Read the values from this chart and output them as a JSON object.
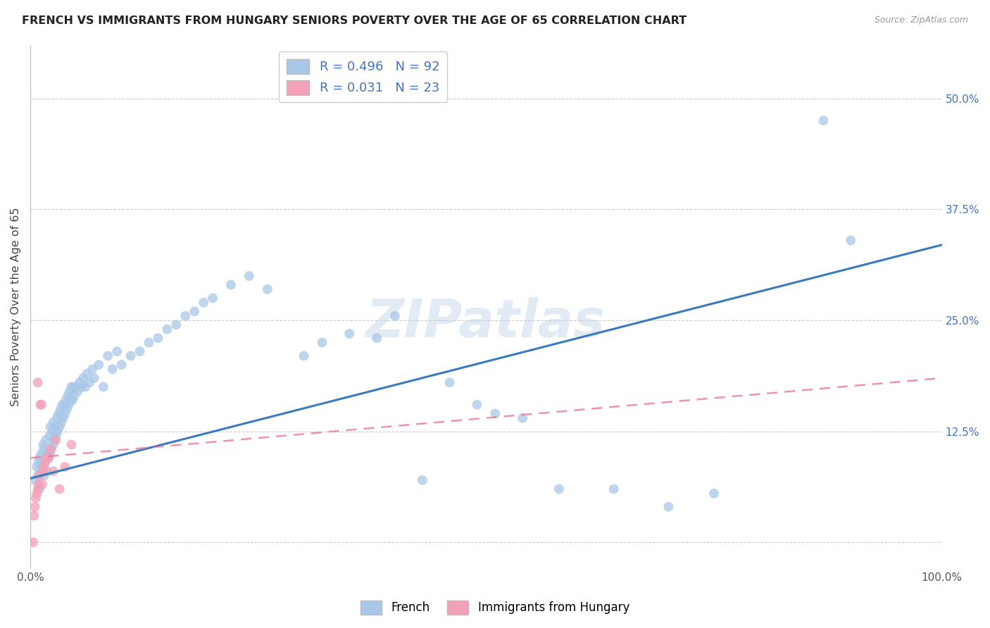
{
  "title": "FRENCH VS IMMIGRANTS FROM HUNGARY SENIORS POVERTY OVER THE AGE OF 65 CORRELATION CHART",
  "source": "Source: ZipAtlas.com",
  "ylabel": "Seniors Poverty Over the Age of 65",
  "xlim": [
    0.0,
    1.0
  ],
  "ylim": [
    -0.03,
    0.56
  ],
  "xticks": [
    0.0,
    0.1,
    0.2,
    0.3,
    0.4,
    0.5,
    0.6,
    0.7,
    0.8,
    0.9,
    1.0
  ],
  "xticklabels": [
    "0.0%",
    "",
    "",
    "",
    "",
    "",
    "",
    "",
    "",
    "",
    "100.0%"
  ],
  "ytick_positions": [
    0.0,
    0.125,
    0.25,
    0.375,
    0.5
  ],
  "ytick_labels": [
    "",
    "12.5%",
    "25.0%",
    "37.5%",
    "50.0%"
  ],
  "french_R": 0.496,
  "french_N": 92,
  "hungary_R": 0.031,
  "hungary_N": 23,
  "french_color": "#a8c8e8",
  "hungary_color": "#f4a0b8",
  "french_line_color": "#3a7abf",
  "hungary_line_color": "#e87090",
  "watermark": "ZIPatlas",
  "legend_label1": "French",
  "legend_label2": "Immigrants from Hungary",
  "french_x": [
    0.005,
    0.007,
    0.008,
    0.009,
    0.01,
    0.01,
    0.011,
    0.012,
    0.013,
    0.014,
    0.015,
    0.015,
    0.016,
    0.017,
    0.018,
    0.019,
    0.02,
    0.021,
    0.022,
    0.022,
    0.023,
    0.024,
    0.025,
    0.025,
    0.026,
    0.027,
    0.028,
    0.029,
    0.03,
    0.031,
    0.032,
    0.033,
    0.034,
    0.035,
    0.036,
    0.037,
    0.038,
    0.039,
    0.04,
    0.041,
    0.042,
    0.043,
    0.044,
    0.045,
    0.046,
    0.047,
    0.048,
    0.05,
    0.052,
    0.054,
    0.056,
    0.058,
    0.06,
    0.062,
    0.065,
    0.068,
    0.07,
    0.075,
    0.08,
    0.085,
    0.09,
    0.095,
    0.1,
    0.11,
    0.12,
    0.13,
    0.14,
    0.15,
    0.16,
    0.17,
    0.18,
    0.19,
    0.2,
    0.22,
    0.24,
    0.26,
    0.3,
    0.32,
    0.35,
    0.38,
    0.4,
    0.43,
    0.46,
    0.49,
    0.51,
    0.54,
    0.58,
    0.64,
    0.7,
    0.75,
    0.87,
    0.9
  ],
  "french_y": [
    0.07,
    0.085,
    0.075,
    0.09,
    0.06,
    0.095,
    0.08,
    0.1,
    0.085,
    0.11,
    0.075,
    0.105,
    0.09,
    0.115,
    0.08,
    0.1,
    0.095,
    0.12,
    0.1,
    0.13,
    0.105,
    0.125,
    0.11,
    0.135,
    0.115,
    0.13,
    0.12,
    0.14,
    0.125,
    0.145,
    0.13,
    0.15,
    0.135,
    0.155,
    0.14,
    0.155,
    0.145,
    0.16,
    0.15,
    0.165,
    0.155,
    0.17,
    0.16,
    0.175,
    0.16,
    0.175,
    0.165,
    0.175,
    0.17,
    0.18,
    0.175,
    0.185,
    0.175,
    0.19,
    0.18,
    0.195,
    0.185,
    0.2,
    0.175,
    0.21,
    0.195,
    0.215,
    0.2,
    0.21,
    0.215,
    0.225,
    0.23,
    0.24,
    0.245,
    0.255,
    0.26,
    0.27,
    0.275,
    0.29,
    0.3,
    0.285,
    0.21,
    0.225,
    0.235,
    0.23,
    0.255,
    0.07,
    0.18,
    0.155,
    0.145,
    0.14,
    0.06,
    0.06,
    0.04,
    0.055,
    0.475,
    0.34
  ],
  "hungary_x": [
    0.003,
    0.004,
    0.005,
    0.006,
    0.007,
    0.008,
    0.008,
    0.009,
    0.01,
    0.011,
    0.012,
    0.013,
    0.014,
    0.015,
    0.016,
    0.018,
    0.02,
    0.022,
    0.025,
    0.028,
    0.032,
    0.038,
    0.045
  ],
  "hungary_y": [
    0.0,
    0.03,
    0.04,
    0.05,
    0.055,
    0.06,
    0.18,
    0.065,
    0.075,
    0.155,
    0.155,
    0.065,
    0.08,
    0.085,
    0.09,
    0.095,
    0.095,
    0.105,
    0.08,
    0.115,
    0.06,
    0.085,
    0.11
  ]
}
